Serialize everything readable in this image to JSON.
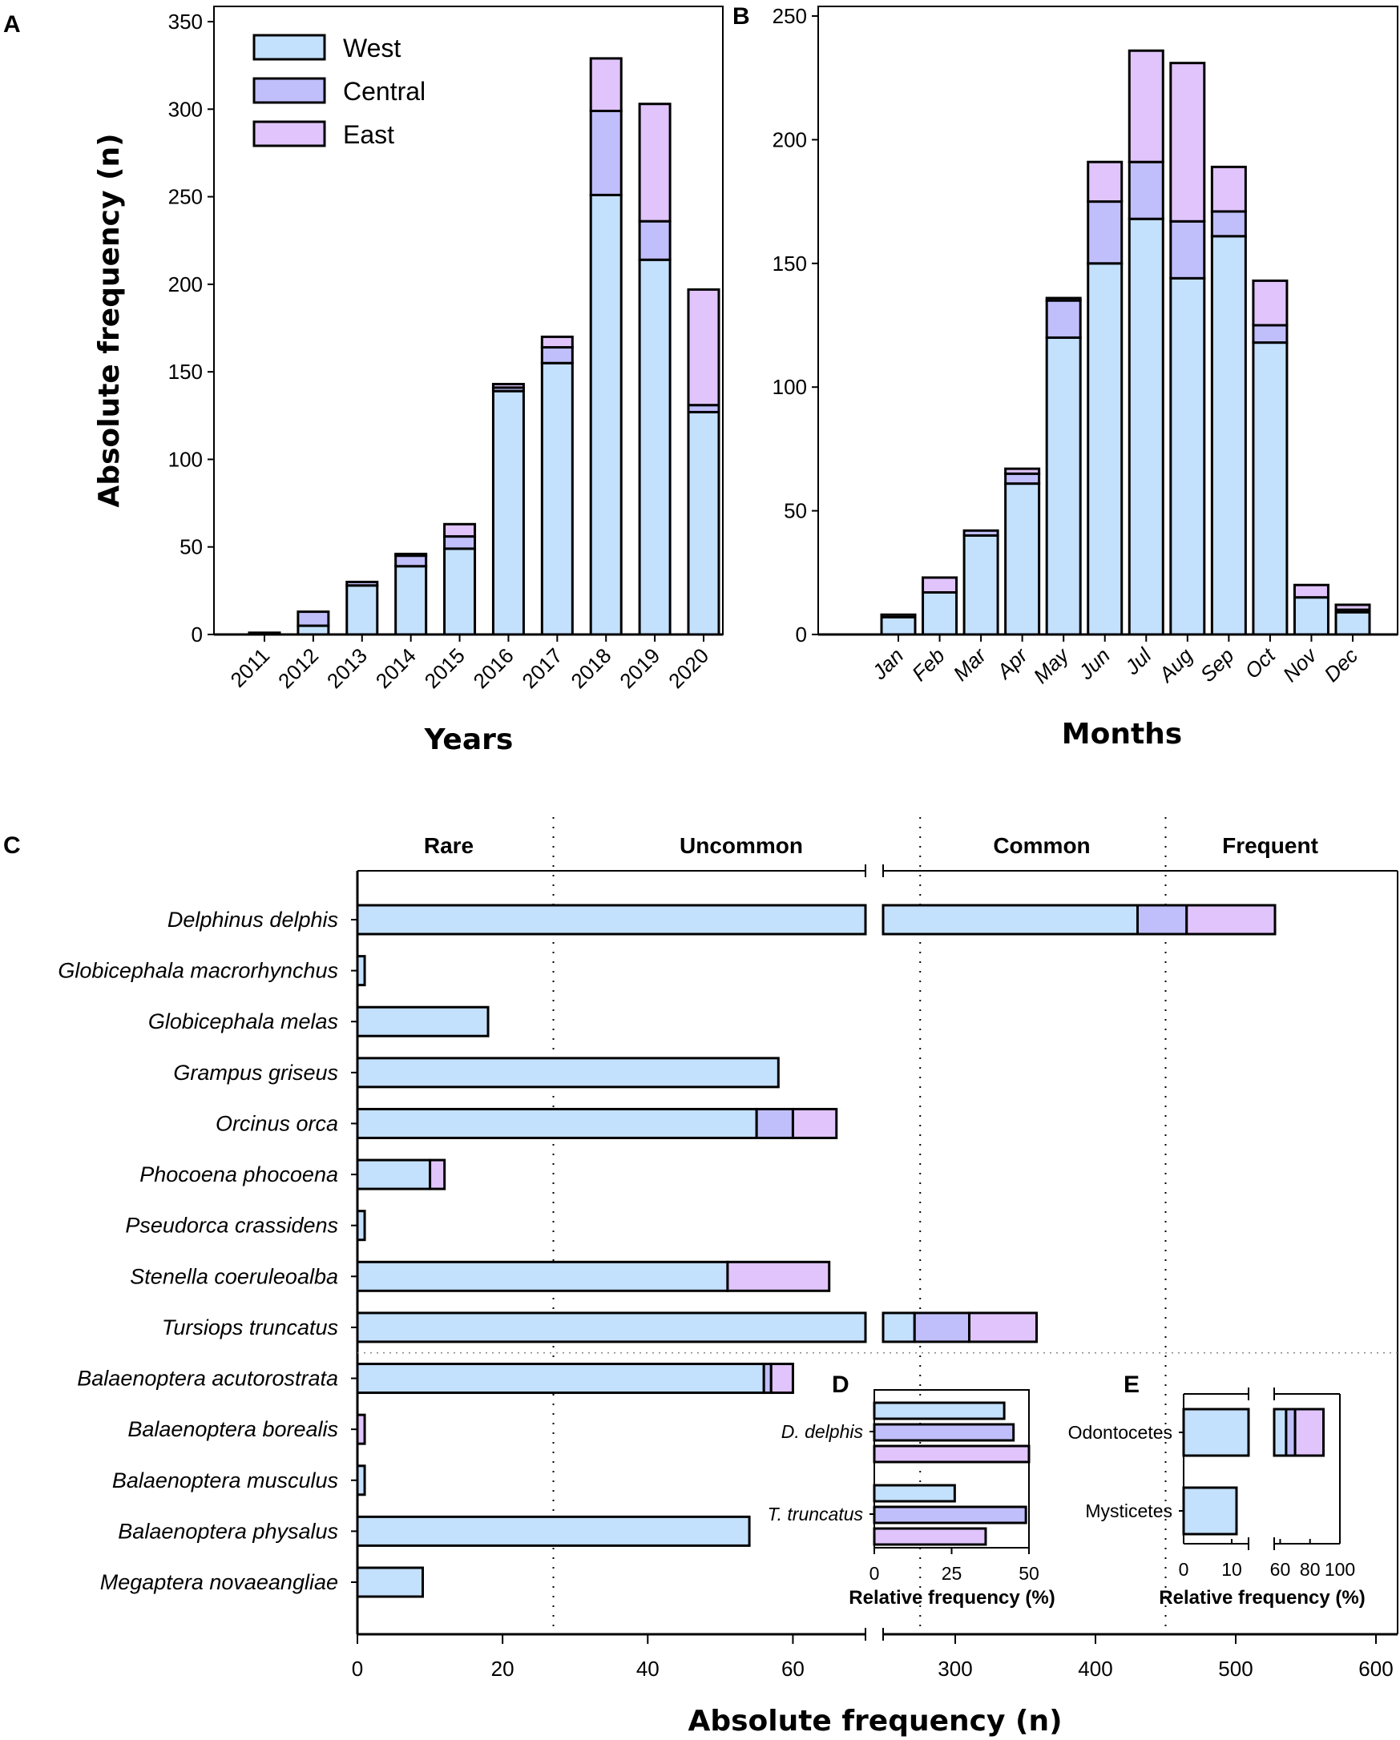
{
  "colors": {
    "West": "#c3e0fd",
    "Central": "#c0bffc",
    "East": "#e0c4fb",
    "stroke": "#000000"
  },
  "chart_data": [
    {
      "panel": "A",
      "type": "bar",
      "stacked": true,
      "title": "",
      "xlabel": "Years",
      "ylabel": "Absolute frequency (n)",
      "ylim": [
        0,
        350
      ],
      "yticks": [
        0,
        50,
        100,
        150,
        200,
        250,
        300,
        350
      ],
      "legend": {
        "position": "top-left",
        "entries": [
          "West",
          "Central",
          "East"
        ]
      },
      "categories": [
        "2011",
        "2012",
        "2013",
        "2014",
        "2015",
        "2016",
        "2017",
        "2018",
        "2019",
        "2020"
      ],
      "series": [
        {
          "name": "West",
          "values": [
            0,
            5,
            28,
            39,
            49,
            139,
            155,
            251,
            214,
            127
          ]
        },
        {
          "name": "Central",
          "values": [
            1,
            8,
            2,
            6,
            7,
            2,
            9,
            48,
            22,
            4
          ]
        },
        {
          "name": "East",
          "values": [
            0,
            0,
            0,
            1,
            7,
            2,
            6,
            30,
            67,
            66
          ]
        }
      ]
    },
    {
      "panel": "B",
      "type": "bar",
      "stacked": true,
      "title": "",
      "xlabel": "Months",
      "ylabel": "",
      "ylim": [
        0,
        250
      ],
      "yticks": [
        0,
        50,
        100,
        150,
        200,
        250
      ],
      "categories": [
        "Jan",
        "Feb",
        "Mar",
        "Apr",
        "May",
        "Jun",
        "Jul",
        "Aug",
        "Sep",
        "Oct",
        "Nov",
        "Dec"
      ],
      "series": [
        {
          "name": "West",
          "values": [
            7,
            17,
            40,
            61,
            120,
            150,
            168,
            144,
            161,
            118,
            15,
            9
          ]
        },
        {
          "name": "Central",
          "values": [
            1,
            0,
            2,
            4,
            15,
            25,
            23,
            23,
            10,
            7,
            0,
            1
          ]
        },
        {
          "name": "East",
          "values": [
            0,
            6,
            0,
            2,
            1,
            16,
            45,
            64,
            18,
            18,
            5,
            2
          ]
        }
      ]
    },
    {
      "panel": "C",
      "type": "bar",
      "orientation": "horizontal",
      "stacked": true,
      "xlabel": "Absolute frequency (n)",
      "ylabel": "",
      "axis_break": {
        "from": 70,
        "to": 250
      },
      "xticks": [
        0,
        20,
        40,
        60,
        300,
        400,
        500,
        600
      ],
      "xlim": [
        0,
        600
      ],
      "category_bands": [
        "Rare",
        "Uncommon",
        "Common",
        "Frequent"
      ],
      "category_thresholds": [
        27,
        275,
        450
      ],
      "group_divider_after": "Tursiops truncatus",
      "categories": [
        "Delphinus delphis",
        "Globicephala macrorhynchus",
        "Globicephala melas",
        "Grampus griseus",
        "Orcinus orca",
        "Phocoena phocoena",
        "Pseudorca crassidens",
        "Stenella coeruleoalba",
        "Tursiops truncatus",
        "Balaenoptera acutorostrata",
        "Balaenoptera borealis",
        "Balaenoptera musculus",
        "Balaenoptera physalus",
        "Megaptera novaeangliae"
      ],
      "series": [
        {
          "name": "West",
          "values": [
            430,
            1,
            18,
            58,
            55,
            10,
            1,
            51,
            271,
            56,
            0,
            1,
            54,
            9
          ]
        },
        {
          "name": "Central",
          "values": [
            35,
            0,
            0,
            0,
            5,
            0,
            0,
            0,
            39,
            1,
            0,
            0,
            0,
            0
          ]
        },
        {
          "name": "East",
          "values": [
            63,
            0,
            0,
            0,
            6,
            2,
            0,
            14,
            48,
            3,
            1,
            0,
            0,
            0
          ]
        }
      ]
    },
    {
      "panel": "D",
      "type": "bar",
      "orientation": "horizontal",
      "xlabel": "Relative frequency (%)",
      "xlim": [
        0,
        50
      ],
      "xticks": [
        0,
        25,
        50
      ],
      "categories": [
        "D. delphis",
        "T. truncatus"
      ],
      "series": [
        {
          "name": "West",
          "values": [
            42,
            26
          ]
        },
        {
          "name": "Central",
          "values": [
            45,
            49
          ]
        },
        {
          "name": "East",
          "values": [
            50,
            36
          ]
        }
      ]
    },
    {
      "panel": "E",
      "type": "bar",
      "orientation": "horizontal",
      "stacked": true,
      "xlabel": "Relative frequency (%)",
      "axis_break": {
        "from": 14,
        "to": 56
      },
      "xlim": [
        0,
        100
      ],
      "xticks": [
        0,
        10,
        60,
        80,
        100
      ],
      "categories": [
        "Odontocetes",
        "Mysticetes"
      ],
      "series": [
        {
          "name": "West",
          "values": [
            64,
            11
          ]
        },
        {
          "name": "Central",
          "values": [
            6,
            0
          ]
        },
        {
          "name": "East",
          "values": [
            19,
            0
          ]
        }
      ]
    }
  ],
  "labels": {
    "panelA": "A",
    "panelB": "B",
    "panelC": "C",
    "panelD": "D",
    "panelE": "E",
    "legend_west": "West",
    "legend_central": "Central",
    "legend_east": "East",
    "yearsAxis": "Years",
    "monthsAxis": "Months",
    "absAxisY": "Absolute frequency (n)",
    "absAxisX": "Absolute frequency (n)",
    "relAxisD": "Relative frequency (%)",
    "relAxisE": "Relative frequency (%)",
    "band_rare": "Rare",
    "band_uncommon": "Uncommon",
    "band_common": "Common",
    "band_frequent": "Frequent"
  }
}
